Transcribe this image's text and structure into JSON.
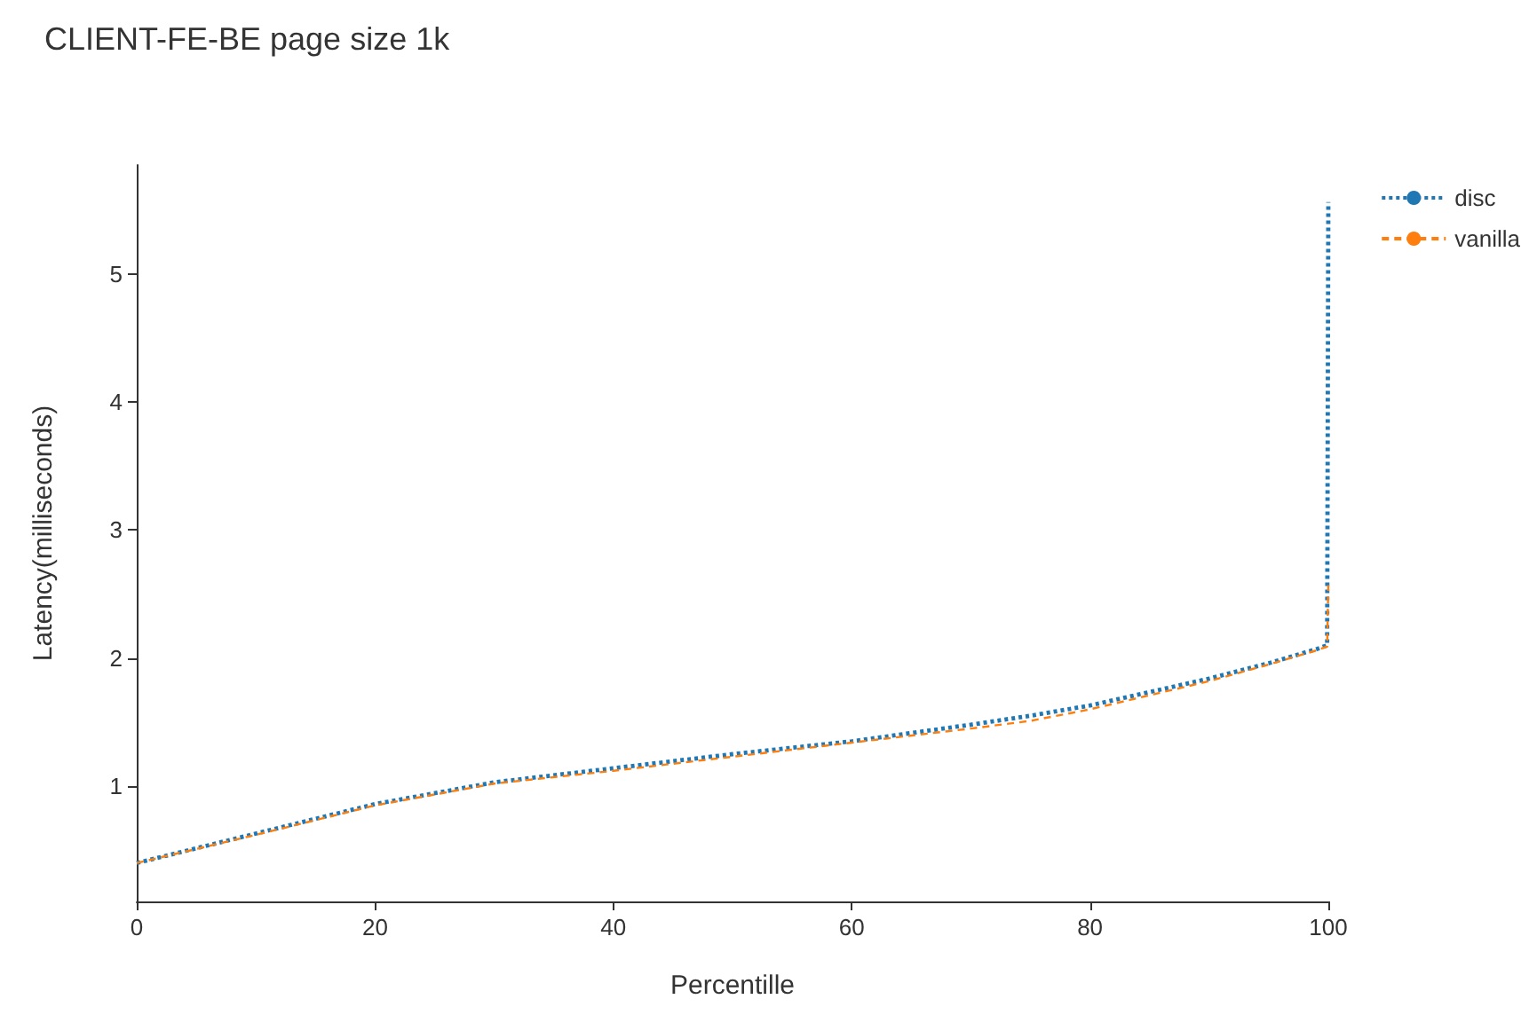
{
  "chart_data": {
    "type": "line",
    "title": "CLIENT-FE-BE page size 1k",
    "xlabel": "Percentille",
    "ylabel": "Latency(milliseconds)",
    "xlim": [
      0,
      100
    ],
    "xticks": [
      0,
      20,
      40,
      60,
      80,
      100
    ],
    "ylim": [
      0.1,
      5.85
    ],
    "yticks": [
      1,
      2,
      3,
      4,
      5
    ],
    "grid": false,
    "legend": "top right",
    "marker": "none",
    "series": [
      {
        "name": "disc",
        "color": "#1f77b4",
        "line_style": "dotted",
        "x": [
          0,
          10,
          20,
          30,
          40,
          50,
          60,
          70,
          75,
          80,
          90,
          95,
          99,
          99.9,
          100
        ],
        "values": [
          0.4,
          0.63,
          0.86,
          1.03,
          1.14,
          1.25,
          1.35,
          1.48,
          1.55,
          1.63,
          1.84,
          1.96,
          2.07,
          2.1,
          5.56
        ]
      },
      {
        "name": "vanilla",
        "color": "#ff7f0e",
        "line_style": "dashed",
        "x": [
          0,
          10,
          20,
          30,
          40,
          50,
          60,
          70,
          75,
          80,
          90,
          95,
          99,
          99.9,
          100
        ],
        "values": [
          0.4,
          0.62,
          0.85,
          1.02,
          1.12,
          1.23,
          1.34,
          1.45,
          1.51,
          1.6,
          1.82,
          1.95,
          2.06,
          2.09,
          2.57
        ]
      }
    ]
  }
}
